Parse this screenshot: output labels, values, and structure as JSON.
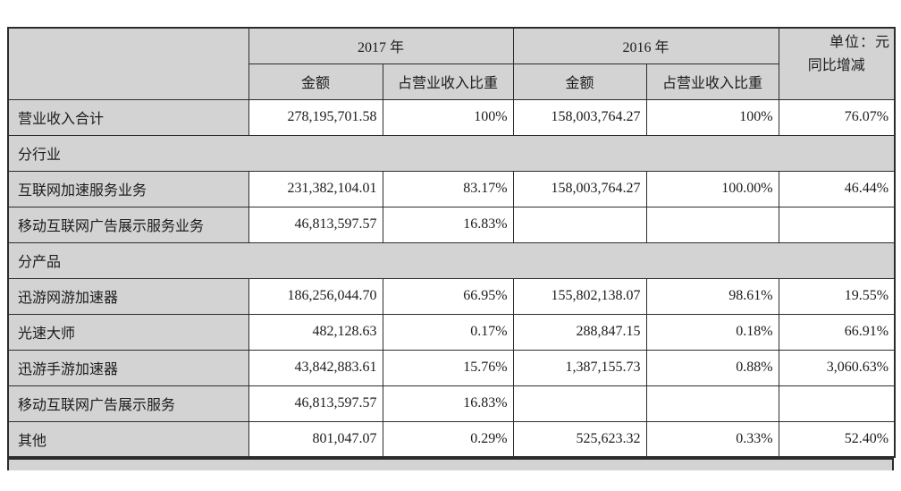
{
  "meta": {
    "unit_label": "单位：元"
  },
  "colors": {
    "cell_gray": "#d3d3d3",
    "border": "#2c2c2c",
    "background": "#ffffff",
    "text": "#1c1c1c"
  },
  "table": {
    "header": {
      "year_2017": "2017 年",
      "year_2016": "2016 年",
      "amount": "金额",
      "share": "占营业收入比重",
      "yoy": "同比增减"
    },
    "rows": [
      {
        "type": "data",
        "label": "营业收入合计",
        "cells": [
          "278,195,701.58",
          "100%",
          "158,003,764.27",
          "100%",
          "76.07%"
        ]
      },
      {
        "type": "section",
        "label": "分行业"
      },
      {
        "type": "data",
        "label": "互联网加速服务业务",
        "cells": [
          "231,382,104.01",
          "83.17%",
          "158,003,764.27",
          "100.00%",
          "46.44%"
        ]
      },
      {
        "type": "data",
        "label": "移动互联网广告展示服务业务",
        "cells": [
          "46,813,597.57",
          "16.83%",
          "",
          "",
          ""
        ]
      },
      {
        "type": "section",
        "label": "分产品"
      },
      {
        "type": "data",
        "label": "迅游网游加速器",
        "cells": [
          "186,256,044.70",
          "66.95%",
          "155,802,138.07",
          "98.61%",
          "19.55%"
        ]
      },
      {
        "type": "data",
        "label": "光速大师",
        "cells": [
          "482,128.63",
          "0.17%",
          "288,847.15",
          "0.18%",
          "66.91%"
        ]
      },
      {
        "type": "data",
        "label": "迅游手游加速器",
        "cells": [
          "43,842,883.61",
          "15.76%",
          "1,387,155.73",
          "0.88%",
          "3,060.63%"
        ]
      },
      {
        "type": "data",
        "label": "移动互联网广告展示服务",
        "cells": [
          "46,813,597.57",
          "16.83%",
          "",
          "",
          ""
        ]
      },
      {
        "type": "data",
        "label": "其他",
        "cells": [
          "801,047.07",
          "0.29%",
          "525,623.32",
          "0.33%",
          "52.40%"
        ]
      }
    ]
  }
}
